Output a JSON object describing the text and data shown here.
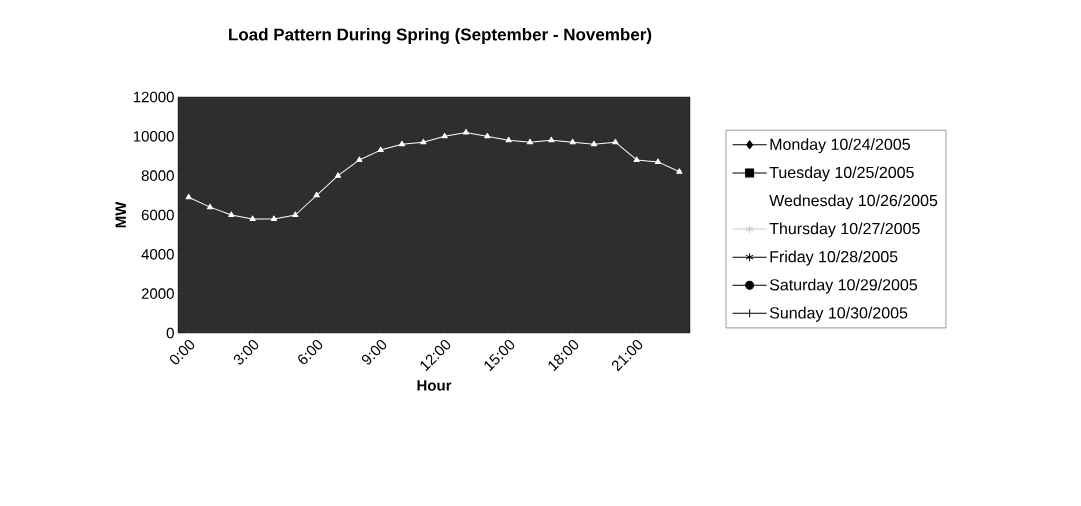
{
  "chart_data": {
    "type": "line",
    "title": "Load Pattern During Spring (September - November)",
    "xlabel": "Hour",
    "ylabel": "MW",
    "categories": [
      "0:00",
      null,
      null,
      "3:00",
      null,
      null,
      "6:00",
      null,
      null,
      "9:00",
      null,
      null,
      "12:00",
      null,
      null,
      "15:00",
      null,
      null,
      "18:00",
      null,
      null,
      "21:00",
      null,
      null
    ],
    "series": [
      {
        "name": "Monday 10/24/2005",
        "color": "#000000",
        "marker": "diamond",
        "values": [
          null,
          null,
          null,
          null,
          null,
          null,
          null,
          null,
          null,
          null,
          null,
          null,
          null,
          null,
          null,
          null,
          null,
          null,
          null,
          null,
          null,
          null,
          null,
          null
        ]
      },
      {
        "name": "Tuesday 10/25/2005",
        "color": "#000000",
        "marker": "square",
        "values": [
          null,
          null,
          null,
          null,
          null,
          null,
          null,
          null,
          null,
          null,
          null,
          null,
          null,
          null,
          null,
          null,
          null,
          null,
          null,
          null,
          null,
          null,
          null,
          null
        ]
      },
      {
        "name": "Wednesday 10/26/2005",
        "color": "#ffffff",
        "marker": "triangle",
        "values": [
          6900,
          6400,
          6000,
          5800,
          5800,
          6000,
          7000,
          8000,
          8800,
          9300,
          9600,
          9700,
          10000,
          10200,
          10000,
          9800,
          9700,
          9800,
          9700,
          9600,
          9700,
          8800,
          8700,
          8200
        ]
      },
      {
        "name": "Thursday 10/27/2005",
        "color": "#c8c8c8",
        "marker": "star",
        "values": [
          null,
          null,
          null,
          null,
          null,
          null,
          null,
          null,
          null,
          null,
          null,
          null,
          null,
          null,
          null,
          null,
          null,
          null,
          null,
          null,
          null,
          null,
          null,
          null
        ]
      },
      {
        "name": "Friday 10/28/2005",
        "color": "#000000",
        "marker": "star",
        "values": [
          null,
          null,
          null,
          null,
          null,
          null,
          null,
          null,
          null,
          null,
          null,
          null,
          null,
          null,
          null,
          null,
          null,
          null,
          null,
          null,
          null,
          null,
          null,
          null
        ]
      },
      {
        "name": "Saturday 10/29/2005",
        "color": "#000000",
        "marker": "circle",
        "values": [
          null,
          null,
          null,
          null,
          null,
          null,
          null,
          null,
          null,
          null,
          null,
          null,
          null,
          null,
          null,
          null,
          null,
          null,
          null,
          null,
          null,
          null,
          null,
          null
        ]
      },
      {
        "name": "Sunday 10/30/2005",
        "color": "#000000",
        "marker": "cross",
        "values": [
          null,
          null,
          null,
          null,
          null,
          null,
          null,
          null,
          null,
          null,
          null,
          null,
          null,
          null,
          null,
          null,
          null,
          null,
          null,
          null,
          null,
          null,
          null,
          null
        ]
      }
    ],
    "ylim": [
      0,
      12000
    ],
    "yticks": [
      0,
      2000,
      4000,
      6000,
      8000,
      10000,
      12000
    ],
    "grid": false,
    "legend": "right"
  }
}
